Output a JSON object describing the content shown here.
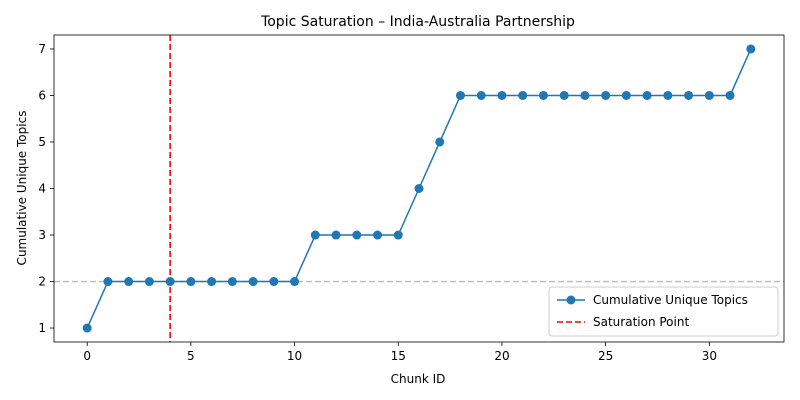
{
  "chart_data": {
    "type": "line",
    "title": "Topic Saturation – India-Australia Partnership",
    "xlabel": "Chunk ID",
    "ylabel": "Cumulative Unique Topics",
    "xlim": [
      -1.6,
      33.6
    ],
    "ylim": [
      0.7,
      7.3
    ],
    "xticks": [
      0,
      5,
      10,
      15,
      20,
      25,
      30
    ],
    "yticks": [
      1,
      2,
      3,
      4,
      5,
      6,
      7
    ],
    "grid": false,
    "legend_position": "lower-right",
    "series": [
      {
        "name": "Cumulative Unique Topics",
        "color": "#1f77b4",
        "marker": "circle",
        "x": [
          0,
          1,
          2,
          3,
          4,
          5,
          6,
          7,
          8,
          9,
          10,
          11,
          12,
          13,
          14,
          15,
          16,
          17,
          18,
          19,
          20,
          21,
          22,
          23,
          24,
          25,
          26,
          27,
          28,
          29,
          30,
          31,
          32
        ],
        "y": [
          1,
          2,
          2,
          2,
          2,
          2,
          2,
          2,
          2,
          2,
          2,
          3,
          3,
          3,
          3,
          3,
          4,
          5,
          6,
          6,
          6,
          6,
          6,
          6,
          6,
          6,
          6,
          6,
          6,
          6,
          6,
          6,
          7
        ]
      }
    ],
    "reference_lines": [
      {
        "name": "Saturation Point",
        "orientation": "vertical",
        "value": 4,
        "color": "#ff0000",
        "style": "dashed",
        "in_legend": true
      },
      {
        "orientation": "horizontal",
        "value": 2,
        "color": "#bbbbbb",
        "style": "dashed",
        "in_legend": false
      }
    ]
  }
}
